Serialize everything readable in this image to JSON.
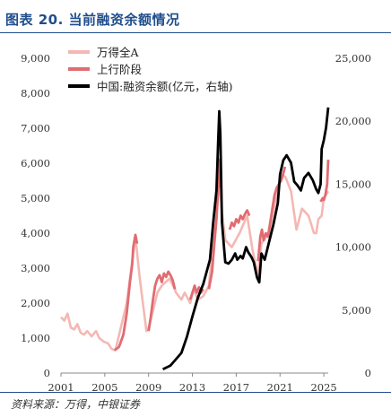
{
  "header": {
    "title": "图表 20. 当前融资余额情况"
  },
  "footer": {
    "source": "资料来源：万得，中银证券"
  },
  "colors": {
    "title_blue": "#1f4e8c",
    "all_a": "#f4b8b4",
    "uptrend": "#e06c72",
    "margin": "#000000",
    "axis_text": "#333333"
  },
  "chart_data": {
    "type": "line",
    "x_ticks": [
      "2001",
      "2005",
      "2009",
      "2013",
      "2017",
      "2021",
      "2025"
    ],
    "xlim": [
      2001,
      2025.4
    ],
    "y_left": {
      "ylim": [
        0,
        9000
      ],
      "ticks": [
        "0",
        "1,000",
        "2,000",
        "3,000",
        "4,000",
        "5,000",
        "6,000",
        "7,000",
        "8,000",
        "9,000"
      ]
    },
    "y_right": {
      "ylim": [
        0,
        25000
      ],
      "ticks": [
        "0",
        "5,000",
        "10,000",
        "15,000",
        "20,000",
        "25,000"
      ]
    },
    "legend": {
      "placement": "top-left",
      "entries": [
        "万得全A",
        "上行阶段",
        "中国:融资余额(亿元，右轴)"
      ]
    },
    "series": [
      {
        "name": "万得全A",
        "axis": "left",
        "color": "#f4b8b4",
        "points": [
          [
            2001.0,
            1600
          ],
          [
            2001.3,
            1500
          ],
          [
            2001.6,
            1700
          ],
          [
            2001.9,
            1300
          ],
          [
            2002.2,
            1250
          ],
          [
            2002.5,
            1400
          ],
          [
            2002.8,
            1150
          ],
          [
            2003.1,
            1100
          ],
          [
            2003.4,
            1200
          ],
          [
            2003.8,
            1050
          ],
          [
            2004.2,
            1200
          ],
          [
            2004.5,
            1000
          ],
          [
            2004.9,
            900
          ],
          [
            2005.3,
            850
          ],
          [
            2005.6,
            700
          ],
          [
            2005.9,
            650
          ],
          [
            2006.0,
            700
          ],
          [
            2007.0,
            2000
          ],
          [
            2007.8,
            3900
          ],
          [
            2008.2,
            2700
          ],
          [
            2008.8,
            1200
          ],
          [
            2009.0,
            1300
          ],
          [
            2009.1,
            1400
          ],
          [
            2009.8,
            2300
          ],
          [
            2010.2,
            2500
          ],
          [
            2010.9,
            2700
          ],
          [
            2011.4,
            2400
          ],
          [
            2011.5,
            2300
          ],
          [
            2012.0,
            2100
          ],
          [
            2012.3,
            2300
          ],
          [
            2012.8,
            2000
          ],
          [
            2013.1,
            2400
          ],
          [
            2013.5,
            2100
          ],
          [
            2014.0,
            2200
          ],
          [
            2014.5,
            2500
          ],
          [
            2015.5,
            5500
          ],
          [
            2015.7,
            4600
          ],
          [
            2016.0,
            3800
          ],
          [
            2016.6,
            3600
          ],
          [
            2017.3,
            4000
          ],
          [
            2018.0,
            4500
          ],
          [
            2018.5,
            3500
          ],
          [
            2019.0,
            2800
          ],
          [
            2019.3,
            3700
          ],
          [
            2020.0,
            4000
          ],
          [
            2020.5,
            4800
          ],
          [
            2021.1,
            5700
          ],
          [
            2021.5,
            5600
          ],
          [
            2022.0,
            5200
          ],
          [
            2022.5,
            4100
          ],
          [
            2023.0,
            4700
          ],
          [
            2023.6,
            4500
          ],
          [
            2024.1,
            4000
          ],
          [
            2024.3,
            4000
          ],
          [
            2024.5,
            4400
          ],
          [
            2024.8,
            4500
          ],
          [
            2025.0,
            5000
          ],
          [
            2025.4,
            5200
          ]
        ]
      },
      {
        "name": "上行阶段",
        "axis": "left",
        "color": "#e06c72",
        "segments": [
          [
            [
              2005.9,
              650
            ],
            [
              2006.3,
              750
            ],
            [
              2006.7,
              1100
            ],
            [
              2007.0,
              1700
            ],
            [
              2007.3,
              2600
            ],
            [
              2007.5,
              3100
            ],
            [
              2007.6,
              3600
            ],
            [
              2007.8,
              3950
            ],
            [
              2007.95,
              3700
            ]
          ],
          [
            [
              2009.0,
              1200
            ],
            [
              2009.2,
              1600
            ],
            [
              2009.4,
              2100
            ],
            [
              2009.6,
              2500
            ],
            [
              2009.8,
              2700
            ],
            [
              2010.0,
              2800
            ],
            [
              2010.2,
              2600
            ],
            [
              2010.4,
              2850
            ],
            [
              2010.6,
              2750
            ],
            [
              2010.8,
              2900
            ],
            [
              2011.0,
              2800
            ],
            [
              2011.2,
              2650
            ],
            [
              2011.4,
              2400
            ]
          ],
          [
            [
              2012.8,
              2100
            ],
            [
              2013.0,
              2300
            ],
            [
              2013.2,
              2500
            ],
            [
              2013.4,
              2300
            ],
            [
              2013.6,
              2450
            ],
            [
              2013.8,
              2300
            ],
            [
              2014.0,
              2400
            ]
          ],
          [
            [
              2014.5,
              2400
            ],
            [
              2014.8,
              2900
            ],
            [
              2015.0,
              3700
            ],
            [
              2015.2,
              4400
            ],
            [
              2015.35,
              5300
            ],
            [
              2015.45,
              6100
            ],
            [
              2015.5,
              5300
            ]
          ],
          [
            [
              2016.4,
              4100
            ],
            [
              2016.6,
              4300
            ],
            [
              2016.8,
              4200
            ],
            [
              2017.0,
              4400
            ],
            [
              2017.2,
              4300
            ],
            [
              2017.4,
              4500
            ],
            [
              2017.6,
              4400
            ],
            [
              2017.8,
              4550
            ],
            [
              2018.0,
              4650
            ],
            [
              2018.2,
              4500
            ]
          ],
          [
            [
              2019.0,
              3200
            ],
            [
              2019.2,
              3900
            ],
            [
              2019.35,
              4100
            ],
            [
              2019.5,
              3800
            ],
            [
              2019.7,
              4000
            ],
            [
              2019.9,
              3900
            ],
            [
              2020.1,
              4300
            ],
            [
              2020.3,
              4700
            ],
            [
              2020.5,
              5100
            ],
            [
              2020.7,
              5300
            ],
            [
              2020.9,
              5400
            ],
            [
              2021.1,
              5500
            ],
            [
              2021.3,
              5700
            ],
            [
              2021.45,
              5900
            ]
          ],
          [
            [
              2024.7,
              4900
            ],
            [
              2024.9,
              5000
            ],
            [
              2025.0,
              4950
            ],
            [
              2025.15,
              5100
            ],
            [
              2025.3,
              5400
            ],
            [
              2025.4,
              6100
            ]
          ]
        ]
      },
      {
        "name": "中国:融资余额(亿元，右轴)",
        "axis": "right",
        "color": "#000000",
        "points": [
          [
            2010.3,
            300
          ],
          [
            2011.0,
            600
          ],
          [
            2011.4,
            1000
          ],
          [
            2012.0,
            1600
          ],
          [
            2012.5,
            2900
          ],
          [
            2013.0,
            4500
          ],
          [
            2013.5,
            6000
          ],
          [
            2014.0,
            7100
          ],
          [
            2014.6,
            9000
          ],
          [
            2014.9,
            12000
          ],
          [
            2015.2,
            14500
          ],
          [
            2015.35,
            18500
          ],
          [
            2015.45,
            20800
          ],
          [
            2015.55,
            19000
          ],
          [
            2015.7,
            12000
          ],
          [
            2015.9,
            9800
          ],
          [
            2016.0,
            8800
          ],
          [
            2016.3,
            8700
          ],
          [
            2016.6,
            9000
          ],
          [
            2016.9,
            9500
          ],
          [
            2017.1,
            9000
          ],
          [
            2017.4,
            9300
          ],
          [
            2017.6,
            9100
          ],
          [
            2017.9,
            10000
          ],
          [
            2018.1,
            9600
          ],
          [
            2018.4,
            9200
          ],
          [
            2018.6,
            8800
          ],
          [
            2018.9,
            7600
          ],
          [
            2019.1,
            7200
          ],
          [
            2019.3,
            9500
          ],
          [
            2019.6,
            9000
          ],
          [
            2020.0,
            10400
          ],
          [
            2020.4,
            11800
          ],
          [
            2020.8,
            13500
          ],
          [
            2021.0,
            15800
          ],
          [
            2021.3,
            16900
          ],
          [
            2021.6,
            17300
          ],
          [
            2022.0,
            16700
          ],
          [
            2022.3,
            15200
          ],
          [
            2022.6,
            14900
          ],
          [
            2022.9,
            14500
          ],
          [
            2023.2,
            15500
          ],
          [
            2023.6,
            15900
          ],
          [
            2024.0,
            15300
          ],
          [
            2024.3,
            14600
          ],
          [
            2024.5,
            14300
          ],
          [
            2024.7,
            15000
          ],
          [
            2024.8,
            17800
          ],
          [
            2025.0,
            18500
          ],
          [
            2025.2,
            19500
          ],
          [
            2025.4,
            21100
          ]
        ]
      }
    ]
  }
}
